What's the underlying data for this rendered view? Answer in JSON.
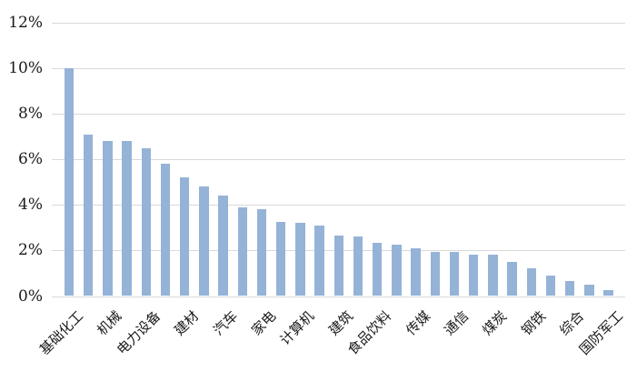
{
  "chart_data": {
    "type": "bar",
    "title": "",
    "xlabel": "",
    "ylabel": "",
    "categories": [
      "基础化工",
      "",
      "机械",
      "",
      "电力设备",
      "",
      "建材",
      "",
      "汽车",
      "",
      "家电",
      "",
      "计算机",
      "",
      "建筑",
      "",
      "食品饮料",
      "",
      "传媒",
      "",
      "通信",
      "",
      "煤炭",
      "",
      "钢铁",
      "",
      "综合",
      "",
      "国防军工"
    ],
    "values": [
      10.0,
      7.1,
      6.8,
      6.8,
      6.5,
      5.8,
      5.2,
      4.8,
      4.4,
      3.9,
      3.8,
      3.25,
      3.2,
      3.1,
      2.65,
      2.6,
      2.35,
      2.25,
      2.1,
      1.95,
      1.95,
      1.8,
      1.8,
      1.5,
      1.2,
      0.9,
      0.65,
      0.5,
      0.25
    ],
    "yticks": [
      {
        "label": "0%",
        "value": 0
      },
      {
        "label": "2%",
        "value": 2
      },
      {
        "label": "4%",
        "value": 4
      },
      {
        "label": "6%",
        "value": 6
      },
      {
        "label": "8%",
        "value": 8
      },
      {
        "label": "10%",
        "value": 10
      },
      {
        "label": "12%",
        "value": 12
      }
    ],
    "ylim": [
      0,
      12
    ],
    "grid": true,
    "legend": false,
    "bar_color": "#95B3D7",
    "gridline_color": "#d9d9d9",
    "text_color": "#1a1a1a",
    "background": "#ffffff"
  }
}
